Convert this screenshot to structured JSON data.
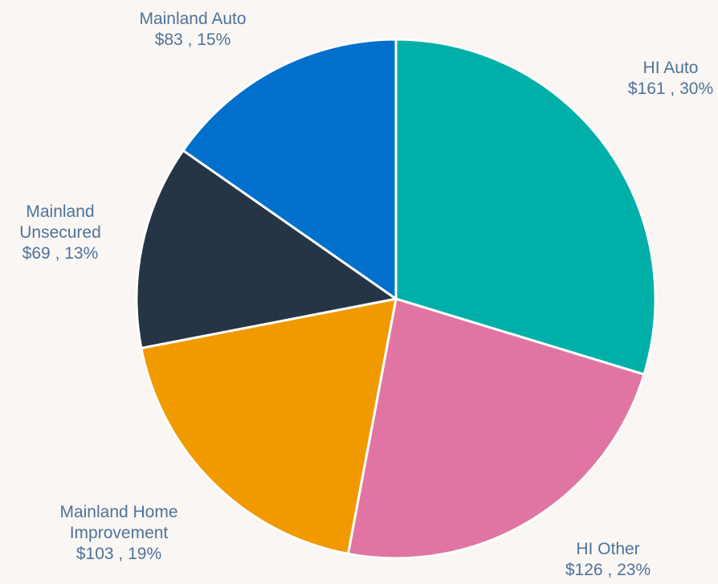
{
  "chart_data": {
    "type": "pie",
    "categories": [
      "HI Auto",
      "HI Other",
      "Mainland Home Improvement",
      "Mainland Unsecured",
      "Mainland Auto"
    ],
    "values": [
      161,
      126,
      103,
      69,
      83
    ],
    "value_labels": [
      "$161 , 30%",
      "$126 , 23%",
      "$103 , 19%",
      "$69 , 13%",
      "$83 , 15%"
    ],
    "colors": [
      "#00b0a8",
      "#e075a3",
      "#f09a00",
      "#253545",
      "#0070cc"
    ]
  }
}
